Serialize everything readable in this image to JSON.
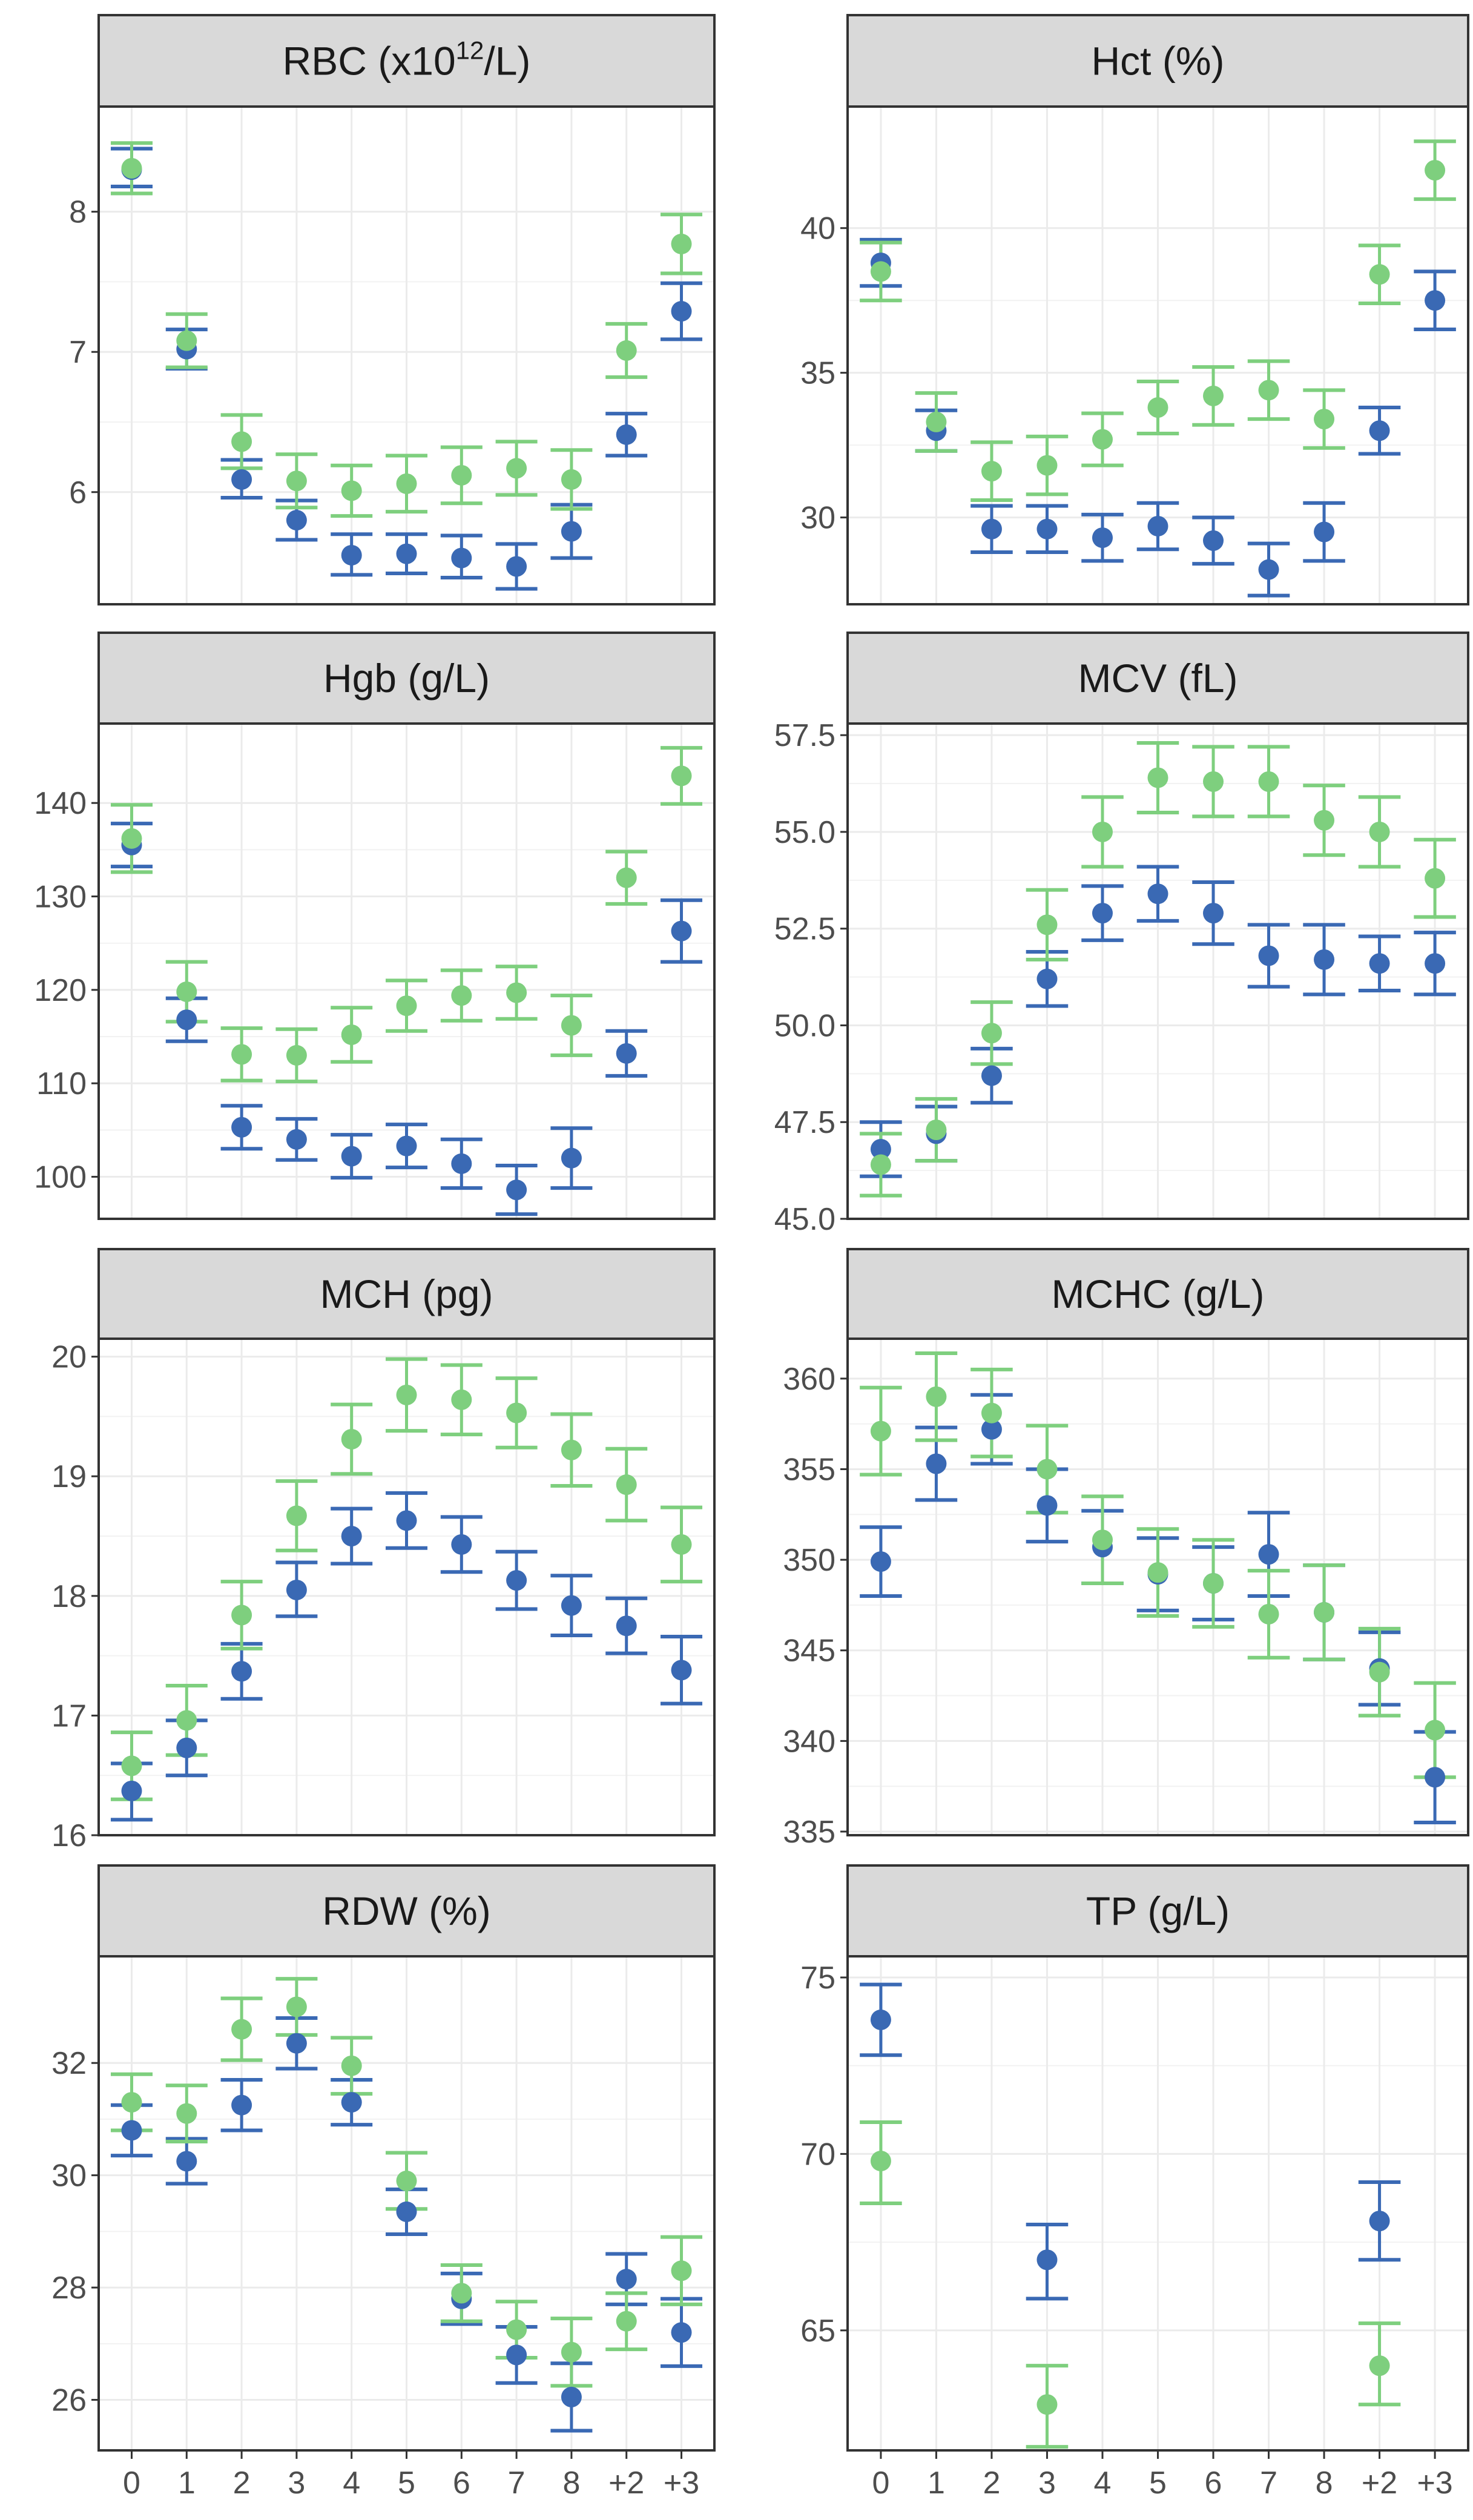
{
  "colors": {
    "series_a": "#3a69b4",
    "series_b": "#7ecf7e",
    "strip_fill": "#d9d9d9",
    "grid": "#ebebeb",
    "frame": "#333333",
    "tick_text": "#4d4d4d"
  },
  "chart_data": [
    {
      "type": "scatter",
      "title": "RBC (x10^12/L)",
      "title_main": "RBC (x10",
      "title_sup": "12",
      "title_tail": "/L)",
      "xlabel": "",
      "ylabel": "",
      "categories": [
        "0",
        "1",
        "2",
        "3",
        "4",
        "5",
        "6",
        "7",
        "8",
        "+2",
        "+3"
      ],
      "ylim": [
        5.2,
        8.75
      ],
      "yticks": [
        6,
        7,
        8
      ],
      "ytick_labels": [
        "6",
        "7",
        "8"
      ],
      "show_x_ticks": false,
      "series": [
        {
          "name": "blue",
          "color": "#3a69b4",
          "values": [
            8.3,
            7.02,
            6.09,
            5.8,
            5.55,
            5.56,
            5.53,
            5.47,
            5.72,
            6.41,
            7.29
          ],
          "lower": [
            8.18,
            6.88,
            5.96,
            5.66,
            5.41,
            5.42,
            5.39,
            5.31,
            5.53,
            6.26,
            7.09
          ],
          "upper": [
            8.45,
            7.16,
            6.23,
            5.94,
            5.7,
            5.7,
            5.69,
            5.63,
            5.91,
            6.56,
            7.49
          ]
        },
        {
          "name": "green",
          "color": "#7ecf7e",
          "values": [
            8.31,
            7.08,
            6.36,
            6.08,
            6.01,
            6.06,
            6.12,
            6.17,
            6.09,
            7.01,
            7.77
          ],
          "lower": [
            8.13,
            6.89,
            6.17,
            5.89,
            5.83,
            5.86,
            5.92,
            5.98,
            5.88,
            6.82,
            7.56
          ],
          "upper": [
            8.49,
            7.27,
            6.55,
            6.27,
            6.19,
            6.26,
            6.32,
            6.36,
            6.3,
            7.2,
            7.98
          ]
        }
      ]
    },
    {
      "type": "scatter",
      "title": "Hct (%)",
      "title_main": "Hct (%)",
      "title_sup": "",
      "title_tail": "",
      "xlabel": "",
      "ylabel": "",
      "categories": [
        "0",
        "1",
        "2",
        "3",
        "4",
        "5",
        "6",
        "7",
        "8",
        "+2",
        "+3"
      ],
      "ylim": [
        27.0,
        44.2
      ],
      "yticks": [
        30,
        35,
        40
      ],
      "ytick_labels": [
        "30",
        "35",
        "40"
      ],
      "show_x_ticks": false,
      "series": [
        {
          "name": "blue",
          "color": "#3a69b4",
          "values": [
            38.8,
            33.0,
            29.6,
            29.6,
            29.3,
            29.7,
            29.2,
            28.2,
            29.5,
            33.0,
            37.5
          ],
          "lower": [
            38.0,
            32.3,
            28.8,
            28.8,
            28.5,
            28.9,
            28.4,
            27.3,
            28.5,
            32.2,
            36.5
          ],
          "upper": [
            39.6,
            33.7,
            30.4,
            30.4,
            30.1,
            30.5,
            30.0,
            29.1,
            30.5,
            33.8,
            38.5
          ]
        },
        {
          "name": "green",
          "color": "#7ecf7e",
          "values": [
            38.5,
            33.3,
            31.6,
            31.8,
            32.7,
            33.8,
            34.2,
            34.4,
            33.4,
            38.4,
            42.0
          ],
          "lower": [
            37.5,
            32.3,
            30.6,
            30.8,
            31.8,
            32.9,
            33.2,
            33.4,
            32.4,
            37.4,
            41.0
          ],
          "upper": [
            39.5,
            34.3,
            32.6,
            32.8,
            33.6,
            34.7,
            35.2,
            35.4,
            34.4,
            39.4,
            43.0
          ]
        }
      ]
    },
    {
      "type": "scatter",
      "title": "Hgb (g/L)",
      "title_main": "Hgb (g/L)",
      "title_sup": "",
      "title_tail": "",
      "xlabel": "",
      "ylabel": "",
      "categories": [
        "0",
        "1",
        "2",
        "3",
        "4",
        "5",
        "6",
        "7",
        "8",
        "+2",
        "+3"
      ],
      "ylim": [
        95.5,
        148.5
      ],
      "yticks": [
        100,
        110,
        120,
        130,
        140
      ],
      "ytick_labels": [
        "100",
        "110",
        "120",
        "130",
        "140"
      ],
      "show_x_ticks": false,
      "series": [
        {
          "name": "blue",
          "color": "#3a69b4",
          "values": [
            135.5,
            116.8,
            105.3,
            104.0,
            102.2,
            103.3,
            101.4,
            98.6,
            102.0,
            113.2,
            126.3
          ],
          "lower": [
            133.2,
            114.5,
            103.0,
            101.8,
            99.9,
            101.0,
            98.8,
            96.0,
            98.8,
            110.8,
            123.0
          ],
          "upper": [
            137.8,
            119.1,
            107.6,
            106.2,
            104.5,
            105.6,
            104.0,
            101.2,
            105.2,
            115.6,
            129.6
          ]
        },
        {
          "name": "green",
          "color": "#7ecf7e",
          "values": [
            136.2,
            119.8,
            113.1,
            113.0,
            115.2,
            118.3,
            119.4,
            119.7,
            116.2,
            132.0,
            142.9
          ],
          "lower": [
            132.6,
            116.6,
            110.3,
            110.2,
            112.3,
            115.6,
            116.7,
            116.9,
            113.0,
            129.2,
            139.9
          ],
          "upper": [
            139.8,
            123.0,
            115.9,
            115.8,
            118.1,
            121.0,
            122.1,
            122.5,
            119.4,
            134.8,
            145.9
          ]
        }
      ]
    },
    {
      "type": "scatter",
      "title": "MCV (fL)",
      "title_main": "MCV (fL)",
      "title_sup": "",
      "title_tail": "",
      "xlabel": "",
      "ylabel": "",
      "categories": [
        "0",
        "1",
        "2",
        "3",
        "4",
        "5",
        "6",
        "7",
        "8",
        "+2",
        "+3"
      ],
      "ylim": [
        45.0,
        57.8
      ],
      "yticks": [
        45.0,
        47.5,
        50.0,
        52.5,
        55.0,
        57.5
      ],
      "ytick_labels": [
        "45.0",
        "47.5",
        "50.0",
        "52.5",
        "55.0",
        "57.5"
      ],
      "show_x_ticks": false,
      "series": [
        {
          "name": "blue",
          "color": "#3a69b4",
          "values": [
            46.8,
            47.2,
            48.7,
            51.2,
            52.9,
            53.4,
            52.9,
            51.8,
            51.7,
            51.6,
            51.6
          ],
          "lower": [
            46.1,
            46.5,
            48.0,
            50.5,
            52.2,
            52.7,
            52.1,
            51.0,
            50.8,
            50.9,
            50.8
          ],
          "upper": [
            47.5,
            47.9,
            49.4,
            51.9,
            53.6,
            54.1,
            53.7,
            52.6,
            52.6,
            52.3,
            52.4
          ]
        },
        {
          "name": "green",
          "color": "#7ecf7e",
          "values": [
            46.4,
            47.3,
            49.8,
            52.6,
            55.0,
            56.4,
            56.3,
            56.3,
            55.3,
            55.0,
            53.8
          ],
          "lower": [
            45.6,
            46.5,
            49.0,
            51.7,
            54.1,
            55.5,
            55.4,
            55.4,
            54.4,
            54.1,
            52.8
          ],
          "upper": [
            47.2,
            48.1,
            50.6,
            53.5,
            55.9,
            57.3,
            57.2,
            57.2,
            56.2,
            55.9,
            54.8
          ]
        }
      ]
    },
    {
      "type": "scatter",
      "title": "MCH (pg)",
      "title_main": "MCH (pg)",
      "title_sup": "",
      "title_tail": "",
      "xlabel": "",
      "ylabel": "",
      "categories": [
        "0",
        "1",
        "2",
        "3",
        "4",
        "5",
        "6",
        "7",
        "8",
        "+2",
        "+3"
      ],
      "ylim": [
        16.0,
        20.15
      ],
      "yticks": [
        16,
        17,
        18,
        19,
        20
      ],
      "ytick_labels": [
        "16",
        "17",
        "18",
        "19",
        "20"
      ],
      "show_x_ticks": false,
      "series": [
        {
          "name": "blue",
          "color": "#3a69b4",
          "values": [
            16.37,
            16.73,
            17.37,
            18.05,
            18.5,
            18.63,
            18.43,
            18.13,
            17.92,
            17.75,
            17.38
          ],
          "lower": [
            16.13,
            16.5,
            17.14,
            17.83,
            18.27,
            18.4,
            18.2,
            17.89,
            17.67,
            17.52,
            17.1
          ],
          "upper": [
            16.6,
            16.96,
            17.6,
            18.28,
            18.73,
            18.86,
            18.66,
            18.37,
            18.17,
            17.98,
            17.66
          ]
        },
        {
          "name": "green",
          "color": "#7ecf7e",
          "values": [
            16.58,
            16.96,
            17.84,
            18.67,
            19.31,
            19.68,
            19.64,
            19.53,
            19.22,
            18.93,
            18.43
          ],
          "lower": [
            16.3,
            16.67,
            17.56,
            18.38,
            19.02,
            19.38,
            19.35,
            19.24,
            18.92,
            18.63,
            18.12
          ],
          "upper": [
            16.86,
            17.25,
            18.12,
            18.96,
            19.6,
            19.98,
            19.93,
            19.82,
            19.52,
            19.23,
            18.74
          ]
        }
      ]
    },
    {
      "type": "scatter",
      "title": "MCHC (g/L)",
      "title_main": "MCHC (g/L)",
      "title_sup": "",
      "title_tail": "",
      "xlabel": "",
      "ylabel": "",
      "categories": [
        "0",
        "1",
        "2",
        "3",
        "4",
        "5",
        "6",
        "7",
        "8",
        "+2",
        "+3"
      ],
      "ylim": [
        334.8,
        362.2
      ],
      "yticks": [
        335,
        340,
        345,
        350,
        355,
        360
      ],
      "ytick_labels": [
        "335",
        "340",
        "345",
        "350",
        "355",
        "360"
      ],
      "show_x_ticks": false,
      "series": [
        {
          "name": "blue",
          "color": "#3a69b4",
          "values": [
            349.9,
            355.3,
            357.2,
            353.0,
            350.7,
            349.2,
            348.7,
            350.3,
            347.1,
            344.0,
            338.0
          ],
          "lower": [
            348.0,
            353.3,
            355.3,
            351.0,
            348.7,
            347.2,
            346.7,
            348.0,
            344.5,
            342.0,
            335.5
          ],
          "upper": [
            351.8,
            357.3,
            359.1,
            355.0,
            352.7,
            351.2,
            350.7,
            352.6,
            349.7,
            346.0,
            340.5
          ]
        },
        {
          "name": "green",
          "color": "#7ecf7e",
          "values": [
            357.1,
            359.0,
            358.1,
            355.0,
            351.1,
            349.3,
            348.7,
            347.0,
            347.1,
            343.8,
            340.6
          ],
          "lower": [
            354.7,
            356.6,
            355.7,
            352.6,
            348.7,
            346.9,
            346.3,
            344.6,
            344.5,
            341.4,
            338.0
          ],
          "upper": [
            359.5,
            361.4,
            360.5,
            357.4,
            353.5,
            351.7,
            351.1,
            349.4,
            349.7,
            346.2,
            343.2
          ]
        }
      ]
    },
    {
      "type": "scatter",
      "title": "RDW (%)",
      "title_main": "RDW (%)",
      "title_sup": "",
      "title_tail": "",
      "xlabel": "",
      "ylabel": "",
      "categories": [
        "0",
        "1",
        "2",
        "3",
        "4",
        "5",
        "6",
        "7",
        "8",
        "+2",
        "+3"
      ],
      "ylim": [
        25.1,
        33.9
      ],
      "yticks": [
        26,
        28,
        30,
        32
      ],
      "ytick_labels": [
        "26",
        "28",
        "30",
        "32"
      ],
      "show_x_ticks": true,
      "series": [
        {
          "name": "blue",
          "color": "#3a69b4",
          "values": [
            30.8,
            30.25,
            31.25,
            32.35,
            31.3,
            29.35,
            27.8,
            26.8,
            26.05,
            28.15,
            27.2
          ],
          "lower": [
            30.35,
            29.85,
            30.8,
            31.9,
            30.9,
            28.95,
            27.35,
            26.3,
            25.45,
            27.7,
            26.6
          ],
          "upper": [
            31.25,
            30.65,
            31.7,
            32.8,
            31.7,
            29.75,
            28.25,
            27.3,
            26.65,
            28.6,
            27.8
          ]
        },
        {
          "name": "green",
          "color": "#7ecf7e",
          "values": [
            31.3,
            31.1,
            32.6,
            33.0,
            31.95,
            29.9,
            27.9,
            27.25,
            26.85,
            27.4,
            28.3
          ],
          "lower": [
            30.8,
            30.6,
            32.05,
            32.5,
            31.45,
            29.4,
            27.4,
            26.75,
            26.25,
            26.9,
            27.7
          ],
          "upper": [
            31.8,
            31.6,
            33.15,
            33.5,
            32.45,
            30.4,
            28.4,
            27.75,
            27.45,
            27.9,
            28.9
          ]
        }
      ]
    },
    {
      "type": "scatter",
      "title": "TP (g/L)",
      "title_main": "TP (g/L)",
      "title_sup": "",
      "title_tail": "",
      "xlabel": "",
      "ylabel": "",
      "categories": [
        "0",
        "1",
        "2",
        "3",
        "4",
        "5",
        "6",
        "7",
        "8",
        "+2",
        "+3"
      ],
      "ylim": [
        61.6,
        75.6
      ],
      "yticks": [
        65,
        70,
        75
      ],
      "ytick_labels": [
        "65",
        "70",
        "75"
      ],
      "show_x_ticks": true,
      "series": [
        {
          "name": "blue",
          "color": "#3a69b4",
          "values": [
            73.8,
            null,
            null,
            67.0,
            null,
            null,
            null,
            null,
            null,
            68.1,
            null
          ],
          "lower": [
            72.8,
            null,
            null,
            65.9,
            null,
            null,
            null,
            null,
            null,
            67.0,
            null
          ],
          "upper": [
            74.8,
            null,
            null,
            68.0,
            null,
            null,
            null,
            null,
            null,
            69.2,
            null
          ]
        },
        {
          "name": "green",
          "color": "#7ecf7e",
          "values": [
            69.8,
            null,
            null,
            62.9,
            null,
            null,
            null,
            null,
            null,
            64.0,
            null
          ],
          "lower": [
            68.6,
            null,
            null,
            61.7,
            null,
            null,
            null,
            null,
            null,
            62.9,
            null
          ],
          "upper": [
            70.9,
            null,
            null,
            64.0,
            null,
            null,
            null,
            null,
            null,
            65.2,
            null
          ]
        }
      ]
    }
  ]
}
